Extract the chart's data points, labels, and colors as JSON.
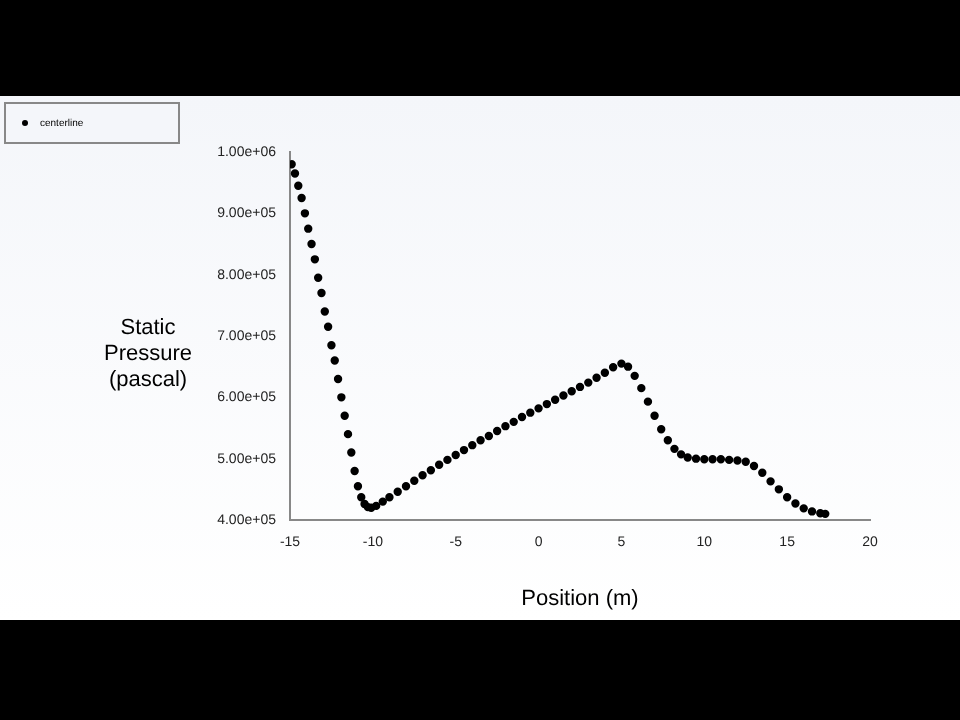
{
  "chart_data": {
    "type": "scatter",
    "xlabel": "Position (m)",
    "ylabel": "Static\nPressure\n(pascal)",
    "xlim": [
      -15,
      20
    ],
    "xticks": [
      -15,
      -10,
      -5,
      0,
      5,
      10,
      15,
      20
    ],
    "ylim": [
      400000,
      1000000
    ],
    "yticks": [
      {
        "value": 400000,
        "label": "4.00e+05"
      },
      {
        "value": 500000,
        "label": "5.00e+05"
      },
      {
        "value": 600000,
        "label": "6.00e+05"
      },
      {
        "value": 700000,
        "label": "7.00e+05"
      },
      {
        "value": 800000,
        "label": "8.00e+05"
      },
      {
        "value": 900000,
        "label": "9.00e+05"
      },
      {
        "value": 1000000,
        "label": "1.00e+06"
      }
    ],
    "grid": false,
    "legend": "top left",
    "marker": "circle",
    "series": [
      {
        "name": "centerline",
        "color": "#000000",
        "x": [
          -14.9,
          -14.7,
          -14.5,
          -14.3,
          -14.1,
          -13.9,
          -13.7,
          -13.5,
          -13.3,
          -13.1,
          -12.9,
          -12.7,
          -12.5,
          -12.3,
          -12.1,
          -11.9,
          -11.7,
          -11.5,
          -11.3,
          -11.1,
          -10.9,
          -10.7,
          -10.5,
          -10.3,
          -10.1,
          -9.8,
          -9.4,
          -9,
          -8.5,
          -8,
          -7.5,
          -7,
          -6.5,
          -6,
          -5.5,
          -5,
          -4.5,
          -4,
          -3.5,
          -3,
          -2.5,
          -2,
          -1.5,
          -1,
          -0.5,
          0,
          0.5,
          1,
          1.5,
          2,
          2.5,
          3,
          3.5,
          4,
          4.5,
          5,
          5.4,
          5.8,
          6.2,
          6.6,
          7,
          7.4,
          7.8,
          8.2,
          8.6,
          9,
          9.5,
          10,
          10.5,
          11,
          11.5,
          12,
          12.5,
          13,
          13.5,
          14,
          14.5,
          15,
          15.5,
          16,
          16.5,
          17,
          17.3
        ],
        "values": [
          980000,
          965000,
          945000,
          925000,
          900000,
          875000,
          850000,
          825000,
          795000,
          770000,
          740000,
          715000,
          685000,
          660000,
          630000,
          600000,
          570000,
          540000,
          510000,
          480000,
          455000,
          437000,
          426000,
          421000,
          420000,
          423000,
          430000,
          437000,
          446000,
          455000,
          464000,
          473000,
          481000,
          490000,
          498000,
          506000,
          514000,
          522000,
          530000,
          537000,
          545000,
          553000,
          560000,
          568000,
          575000,
          582000,
          589000,
          596000,
          603000,
          610000,
          617000,
          624000,
          632000,
          640000,
          649000,
          655000,
          650000,
          635000,
          615000,
          593000,
          570000,
          548000,
          530000,
          516000,
          507000,
          502000,
          500000,
          499000,
          499000,
          499000,
          498000,
          497000,
          495000,
          488000,
          477000,
          463000,
          450000,
          437000,
          427000,
          419000,
          414000,
          411000,
          410000
        ]
      }
    ]
  }
}
